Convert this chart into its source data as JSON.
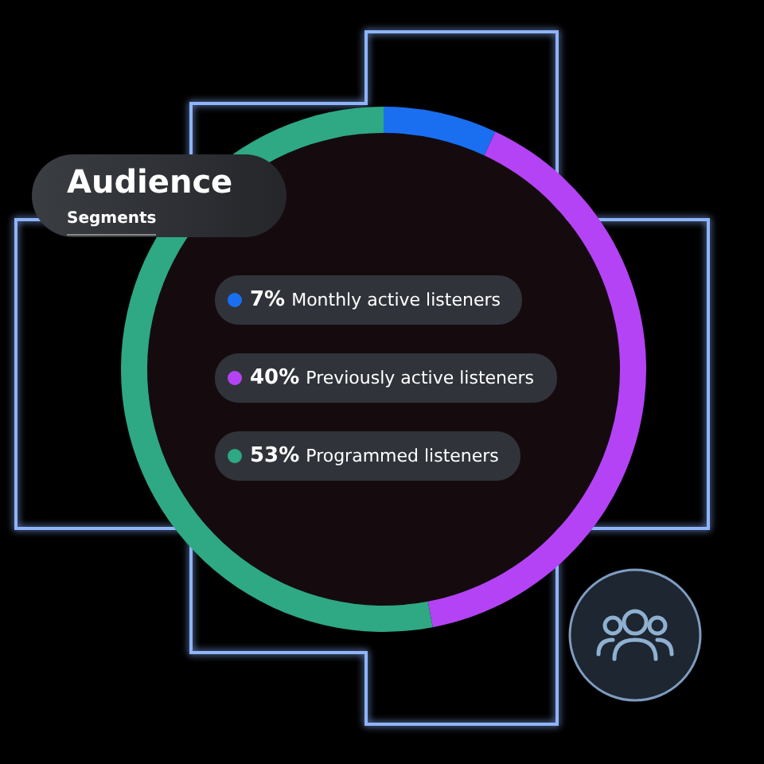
{
  "chart_data": {
    "type": "donut",
    "title": "Audience",
    "subtitle": "Segments",
    "categories": [
      "Monthly active listeners",
      "Previously active listeners",
      "Programmed listeners"
    ],
    "values": [
      7,
      40,
      53
    ],
    "value_labels": [
      "7%",
      "40%",
      "53%"
    ],
    "colors": [
      "#1a6ff0",
      "#b443f5",
      "#2fa884"
    ]
  }
}
